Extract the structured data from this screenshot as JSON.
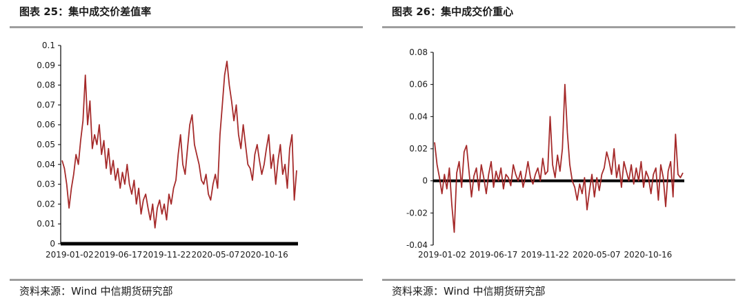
{
  "panels": [
    {
      "title": "图表 25：集中成交价差值率",
      "source": "资料来源：Wind  中信期货研究部"
    },
    {
      "title": "图表 26：集中成交价重心",
      "source": "资料来源：Wind  中信期货研究部"
    }
  ],
  "colors": {
    "series": "#a52a2a",
    "baseline": "#000000",
    "rule": "#9e9e9e"
  },
  "chart_data": [
    {
      "type": "line",
      "title": "图表 25：集中成交价差值率",
      "xlabel": "",
      "ylabel": "",
      "x_ticks": [
        "2019-01-02",
        "2019-06-17",
        "2019-11-22",
        "2020-05-07",
        "2020-10-16"
      ],
      "y_ticks": [
        "0",
        "0.01",
        "0.02",
        "0.03",
        "0.04",
        "0.05",
        "0.06",
        "0.07",
        "0.08",
        "0.09",
        "0.1"
      ],
      "ylim": [
        0,
        0.1
      ],
      "grid": false,
      "series": [
        {
          "values": [
            0.042,
            0.038,
            0.03,
            0.018,
            0.028,
            0.035,
            0.045,
            0.04,
            0.052,
            0.062,
            0.085,
            0.06,
            0.072,
            0.048,
            0.055,
            0.05,
            0.06,
            0.045,
            0.052,
            0.038,
            0.048,
            0.035,
            0.042,
            0.032,
            0.038,
            0.028,
            0.036,
            0.03,
            0.04,
            0.03,
            0.025,
            0.032,
            0.02,
            0.028,
            0.015,
            0.022,
            0.025,
            0.018,
            0.012,
            0.02,
            0.008,
            0.018,
            0.022,
            0.015,
            0.02,
            0.012,
            0.025,
            0.02,
            0.028,
            0.032,
            0.045,
            0.055,
            0.04,
            0.035,
            0.048,
            0.06,
            0.065,
            0.05,
            0.045,
            0.04,
            0.032,
            0.03,
            0.035,
            0.025,
            0.022,
            0.03,
            0.035,
            0.028,
            0.055,
            0.07,
            0.085,
            0.092,
            0.08,
            0.072,
            0.062,
            0.07,
            0.055,
            0.048,
            0.06,
            0.05,
            0.04,
            0.038,
            0.032,
            0.045,
            0.05,
            0.042,
            0.035,
            0.04,
            0.048,
            0.055,
            0.038,
            0.045,
            0.03,
            0.042,
            0.05,
            0.035,
            0.04,
            0.028,
            0.048,
            0.055,
            0.022,
            0.037
          ]
        }
      ]
    },
    {
      "type": "line",
      "title": "图表 26：集中成交价重心",
      "xlabel": "",
      "ylabel": "",
      "x_ticks": [
        "2019-01-02",
        "2019-06-17",
        "2019-11-22",
        "2020-05-07",
        "2020-10-16"
      ],
      "y_ticks": [
        "-0.04",
        "-0.02",
        "0",
        "0.02",
        "0.04",
        "0.06",
        "0.08"
      ],
      "ylim": [
        -0.04,
        0.08
      ],
      "grid": false,
      "series": [
        {
          "values": [
            0.024,
            0.01,
            0.002,
            -0.008,
            0.004,
            -0.005,
            0.008,
            -0.015,
            -0.032,
            0.005,
            0.012,
            -0.004,
            0.018,
            0.022,
            0.006,
            -0.01,
            0.003,
            0.008,
            -0.006,
            0.01,
            0.002,
            -0.008,
            0.004,
            0.012,
            -0.004,
            0.006,
            0.0,
            0.008,
            -0.005,
            0.004,
            0.002,
            -0.003,
            0.01,
            0.004,
            0.0,
            0.006,
            -0.004,
            0.003,
            0.012,
            0.002,
            -0.002,
            0.004,
            0.008,
            0.0,
            0.014,
            0.004,
            0.006,
            0.04,
            0.01,
            0.002,
            0.016,
            0.006,
            0.02,
            0.06,
            0.03,
            0.01,
            0.0,
            -0.004,
            -0.012,
            -0.002,
            -0.008,
            0.002,
            -0.018,
            -0.006,
            0.004,
            -0.01,
            0.002,
            -0.006,
            0.004,
            0.008,
            0.018,
            0.012,
            0.004,
            0.02,
            0.002,
            0.01,
            -0.004,
            0.012,
            0.006,
            0.0,
            0.01,
            -0.002,
            0.008,
            0.0,
            0.012,
            -0.004,
            0.006,
            0.002,
            -0.008,
            0.004,
            0.008,
            -0.012,
            0.01,
            0.002,
            -0.016,
            0.006,
            0.012,
            -0.01,
            0.029,
            0.004,
            0.002,
            0.005
          ]
        }
      ]
    }
  ]
}
